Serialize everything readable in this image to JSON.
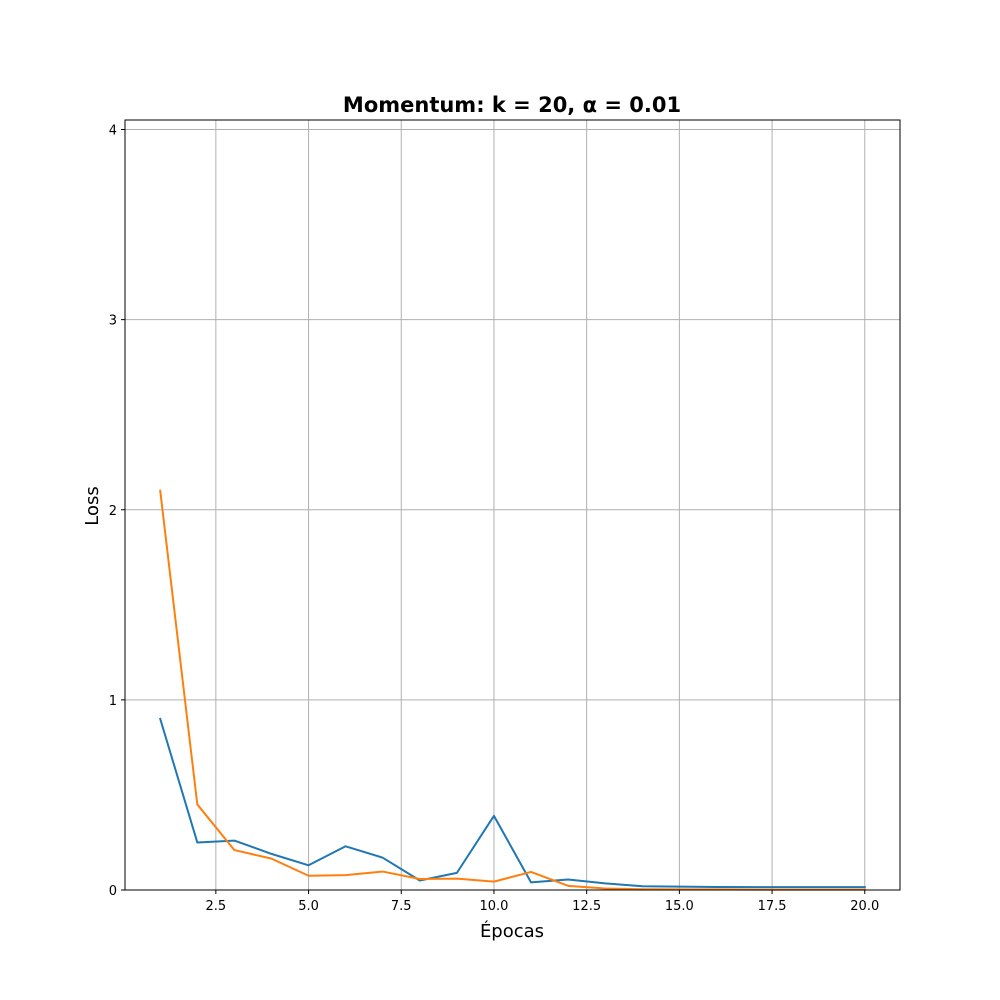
{
  "chart_data": {
    "type": "line",
    "title": "Momentum: k = 20, α = 0.01",
    "xlabel": "Épocas",
    "ylabel": "Loss",
    "xlim": [
      0.05,
      20.95
    ],
    "ylim": [
      0,
      4.05
    ],
    "xticks": [
      2.5,
      5.0,
      7.5,
      10.0,
      12.5,
      15.0,
      17.5,
      20.0
    ],
    "xtick_labels": [
      "2.5",
      "5.0",
      "7.5",
      "10.0",
      "12.5",
      "15.0",
      "17.5",
      "20.0"
    ],
    "yticks": [
      0,
      1,
      2,
      3,
      4
    ],
    "ytick_labels": [
      "0",
      "1",
      "2",
      "3",
      "4"
    ],
    "grid": true,
    "x": [
      1,
      2,
      3,
      4,
      5,
      6,
      7,
      8,
      9,
      10,
      11,
      12,
      13,
      14,
      15,
      16,
      17,
      18,
      19,
      20
    ],
    "series": [
      {
        "color": "#1f77b4",
        "values": [
          0.9,
          0.25,
          0.26,
          0.19,
          0.13,
          0.23,
          0.17,
          0.05,
          0.09,
          0.39,
          0.04,
          0.055,
          0.035,
          0.02,
          0.018,
          0.016,
          0.015,
          0.015,
          0.015,
          0.015
        ]
      },
      {
        "color": "#ff7f0e",
        "values": [
          2.1,
          0.45,
          0.21,
          0.165,
          0.075,
          0.078,
          0.097,
          0.058,
          0.06,
          0.044,
          0.095,
          0.022,
          0.008,
          0.004,
          0.003,
          0.003,
          0.002,
          0.002,
          0.002,
          0.002
        ]
      }
    ]
  }
}
